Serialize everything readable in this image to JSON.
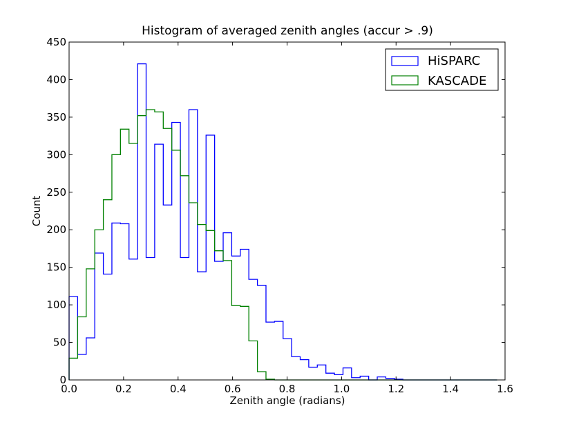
{
  "chart_data": {
    "type": "histogram",
    "title": "Histogram of averaged zenith angles (accur > .9)",
    "xlabel": "Zenith angle (radians)",
    "ylabel": "Count",
    "xlim": [
      0.0,
      1.6
    ],
    "ylim": [
      0,
      450
    ],
    "xticks": [
      "0.0",
      "0.2",
      "0.4",
      "0.6",
      "0.8",
      "1.0",
      "1.2",
      "1.4",
      "1.6"
    ],
    "yticks": [
      "0",
      "50",
      "100",
      "150",
      "200",
      "250",
      "300",
      "350",
      "400",
      "450"
    ],
    "bin_edges": [
      0.0,
      0.0314,
      0.0628,
      0.0942,
      0.1257,
      0.1571,
      0.1885,
      0.2199,
      0.2513,
      0.2827,
      0.3142,
      0.3456,
      0.377,
      0.4084,
      0.4398,
      0.4712,
      0.5027,
      0.5341,
      0.5655,
      0.5969,
      0.6283,
      0.6597,
      0.6912,
      0.7226,
      0.754,
      0.7854,
      0.8168,
      0.8482,
      0.8796,
      0.911,
      0.9425,
      0.9739,
      1.0053,
      1.0367,
      1.0681,
      1.0996,
      1.131,
      1.1624,
      1.1938,
      1.2252,
      1.2566,
      1.2881,
      1.3195,
      1.3509,
      1.3823,
      1.4137,
      1.4451,
      1.4765,
      1.508,
      1.5394,
      1.5708
    ],
    "series": [
      {
        "name": "HiSPARC",
        "color": "#0000ff",
        "values": [
          111,
          34,
          56,
          169,
          141,
          209,
          208,
          161,
          421,
          163,
          314,
          233,
          343,
          163,
          360,
          144,
          326,
          158,
          196,
          165,
          174,
          134,
          126,
          77,
          78,
          55,
          31,
          27,
          17,
          20,
          9,
          7,
          16,
          3,
          5,
          0,
          4,
          2,
          1,
          0,
          0,
          0,
          0,
          0,
          0,
          0,
          0,
          0,
          0,
          0
        ]
      },
      {
        "name": "KASCADE",
        "color": "#008000",
        "values": [
          29,
          84,
          148,
          200,
          240,
          300,
          334,
          315,
          352,
          360,
          357,
          335,
          306,
          272,
          236,
          207,
          199,
          172,
          159,
          99,
          98,
          52,
          11,
          1,
          0,
          0,
          0,
          0,
          0,
          0,
          0,
          0,
          0,
          0,
          0,
          0,
          0,
          0,
          0,
          0,
          0,
          0,
          0,
          0,
          0,
          0,
          0,
          0,
          0,
          0
        ]
      }
    ],
    "legend": {
      "placement": "top-right"
    }
  }
}
